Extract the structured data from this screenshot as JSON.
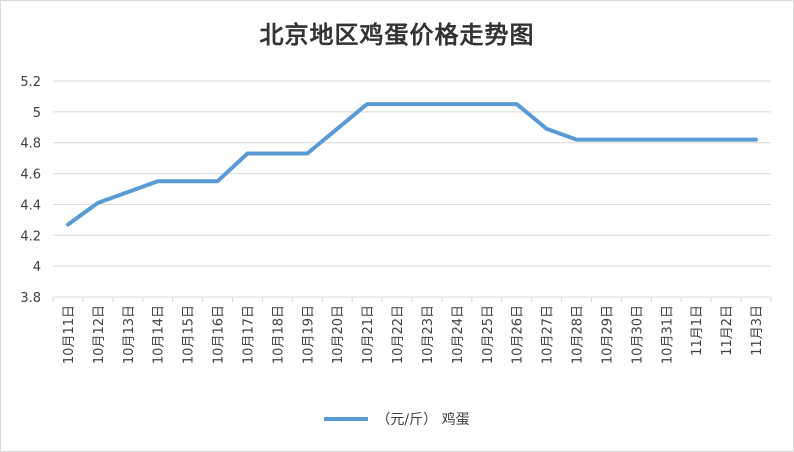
{
  "chart_data": {
    "type": "line",
    "title": "北京地区鸡蛋价格走势图",
    "categories": [
      "10月11日",
      "10月12日",
      "10月13日",
      "10月14日",
      "10月15日",
      "10月16日",
      "10月17日",
      "10月18日",
      "10月19日",
      "10月20日",
      "10月21日",
      "10月22日",
      "10月23日",
      "10月24日",
      "10月25日",
      "10月26日",
      "10月27日",
      "10月28日",
      "10月29日",
      "10月30日",
      "10月31日",
      "11月1日",
      "11月2日",
      "11月3日"
    ],
    "series": [
      {
        "name": "（元/斤） 鸡蛋",
        "color": "#5b9bd5",
        "values": [
          4.27,
          4.41,
          4.48,
          4.55,
          4.55,
          4.55,
          4.73,
          4.73,
          4.73,
          4.89,
          5.05,
          5.05,
          5.05,
          5.05,
          5.05,
          5.05,
          4.89,
          4.82,
          4.82,
          4.82,
          4.82,
          4.82,
          4.82,
          4.82
        ]
      }
    ],
    "ylim": [
      3.8,
      5.2
    ],
    "yticks": [
      "3.8",
      "4",
      "4.2",
      "4.4",
      "4.6",
      "4.8",
      "5",
      "5.2"
    ],
    "grid": true,
    "legend": "bottom"
  }
}
